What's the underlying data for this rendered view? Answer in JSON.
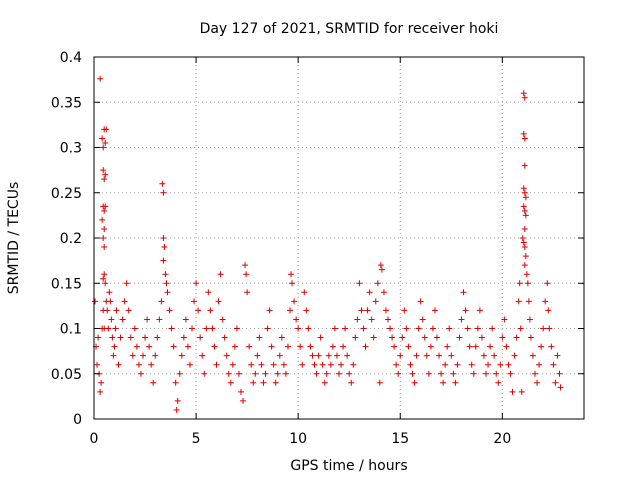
{
  "colors": {
    "series": "#e00000",
    "grid": "#a0a0a0",
    "axis": "#000000"
  },
  "chart_data": {
    "type": "scatter",
    "title": "Day 127 of 2021, SRMTID for receiver hoki",
    "xlabel": "GPS time / hours",
    "ylabel": "SRMTID / TECUs",
    "xlim": [
      0,
      24
    ],
    "ylim": [
      0,
      0.4
    ],
    "grid": true,
    "marker": "plus",
    "x_ticks": [
      0,
      5,
      10,
      15,
      20
    ],
    "x_tick_labels": [
      "0",
      "5",
      "10",
      "15",
      "20"
    ],
    "y_ticks": [
      0,
      0.05,
      0.1,
      0.15,
      0.2,
      0.25,
      0.3,
      0.35,
      0.4
    ],
    "y_tick_labels": [
      "0",
      "0.05",
      "0.1",
      "0.15",
      "0.2",
      "0.25",
      "0.3",
      "0.35",
      "0.4"
    ],
    "series": [
      {
        "name": "SRMTID",
        "points": [
          [
            0.05,
            0.13
          ],
          [
            0.1,
            0.08
          ],
          [
            0.15,
            0.06
          ],
          [
            0.2,
            0.09
          ],
          [
            0.25,
            0.05
          ],
          [
            0.3,
            0.03
          ],
          [
            0.35,
            0.04
          ],
          [
            0.4,
            0.1
          ],
          [
            0.45,
            0.12
          ],
          [
            0.5,
            0.1
          ],
          [
            0.3,
            0.376
          ],
          [
            0.4,
            0.31
          ],
          [
            0.45,
            0.3
          ],
          [
            0.5,
            0.32
          ],
          [
            0.55,
            0.305
          ],
          [
            0.6,
            0.32
          ],
          [
            0.45,
            0.275
          ],
          [
            0.5,
            0.265
          ],
          [
            0.55,
            0.27
          ],
          [
            0.45,
            0.235
          ],
          [
            0.5,
            0.23
          ],
          [
            0.55,
            0.235
          ],
          [
            0.4,
            0.22
          ],
          [
            0.5,
            0.21
          ],
          [
            0.45,
            0.2
          ],
          [
            0.5,
            0.19
          ],
          [
            0.45,
            0.155
          ],
          [
            0.5,
            0.16
          ],
          [
            0.55,
            0.15
          ],
          [
            0.6,
            0.13
          ],
          [
            0.65,
            0.12
          ],
          [
            0.7,
            0.1
          ],
          [
            0.75,
            0.14
          ],
          [
            0.8,
            0.13
          ],
          [
            0.85,
            0.11
          ],
          [
            0.9,
            0.09
          ],
          [
            0.95,
            0.07
          ],
          [
            1.0,
            0.08
          ],
          [
            1.05,
            0.1
          ],
          [
            1.1,
            0.12
          ],
          [
            1.2,
            0.06
          ],
          [
            1.3,
            0.09
          ],
          [
            1.4,
            0.11
          ],
          [
            1.5,
            0.13
          ],
          [
            1.6,
            0.15
          ],
          [
            1.7,
            0.12
          ],
          [
            1.8,
            0.09
          ],
          [
            1.9,
            0.07
          ],
          [
            2.0,
            0.1
          ],
          [
            2.1,
            0.08
          ],
          [
            2.2,
            0.06
          ],
          [
            2.3,
            0.05
          ],
          [
            2.4,
            0.07
          ],
          [
            2.5,
            0.09
          ],
          [
            2.6,
            0.11
          ],
          [
            2.7,
            0.08
          ],
          [
            2.8,
            0.06
          ],
          [
            2.9,
            0.04
          ],
          [
            3.0,
            0.07
          ],
          [
            3.1,
            0.09
          ],
          [
            3.2,
            0.11
          ],
          [
            3.3,
            0.13
          ],
          [
            3.35,
            0.26
          ],
          [
            3.4,
            0.25
          ],
          [
            3.4,
            0.2
          ],
          [
            3.45,
            0.19
          ],
          [
            3.4,
            0.175
          ],
          [
            3.5,
            0.16
          ],
          [
            3.55,
            0.15
          ],
          [
            3.6,
            0.14
          ],
          [
            3.7,
            0.12
          ],
          [
            3.8,
            0.1
          ],
          [
            3.9,
            0.08
          ],
          [
            4.0,
            0.04
          ],
          [
            4.05,
            0.01
          ],
          [
            4.1,
            0.02
          ],
          [
            4.2,
            0.05
          ],
          [
            4.3,
            0.07
          ],
          [
            4.4,
            0.09
          ],
          [
            4.5,
            0.11
          ],
          [
            4.6,
            0.08
          ],
          [
            4.7,
            0.06
          ],
          [
            4.8,
            0.1
          ],
          [
            4.9,
            0.13
          ],
          [
            5.0,
            0.15
          ],
          [
            5.1,
            0.12
          ],
          [
            5.2,
            0.09
          ],
          [
            5.3,
            0.07
          ],
          [
            5.4,
            0.05
          ],
          [
            5.5,
            0.1
          ],
          [
            5.6,
            0.14
          ],
          [
            5.7,
            0.12
          ],
          [
            5.8,
            0.1
          ],
          [
            5.9,
            0.08
          ],
          [
            6.0,
            0.06
          ],
          [
            6.1,
            0.13
          ],
          [
            6.2,
            0.16
          ],
          [
            6.3,
            0.11
          ],
          [
            6.4,
            0.09
          ],
          [
            6.5,
            0.07
          ],
          [
            6.6,
            0.05
          ],
          [
            6.7,
            0.04
          ],
          [
            6.8,
            0.06
          ],
          [
            6.9,
            0.08
          ],
          [
            7.0,
            0.1
          ],
          [
            7.1,
            0.05
          ],
          [
            7.2,
            0.03
          ],
          [
            7.3,
            0.02
          ],
          [
            7.4,
            0.17
          ],
          [
            7.45,
            0.16
          ],
          [
            7.5,
            0.14
          ],
          [
            7.6,
            0.08
          ],
          [
            7.7,
            0.06
          ],
          [
            7.8,
            0.04
          ],
          [
            7.9,
            0.05
          ],
          [
            8.0,
            0.07
          ],
          [
            8.1,
            0.09
          ],
          [
            8.2,
            0.06
          ],
          [
            8.3,
            0.04
          ],
          [
            8.4,
            0.05
          ],
          [
            8.5,
            0.1
          ],
          [
            8.6,
            0.12
          ],
          [
            8.7,
            0.08
          ],
          [
            8.8,
            0.06
          ],
          [
            8.9,
            0.04
          ],
          [
            9.0,
            0.05
          ],
          [
            9.1,
            0.07
          ],
          [
            9.2,
            0.09
          ],
          [
            9.3,
            0.06
          ],
          [
            9.4,
            0.05
          ],
          [
            9.5,
            0.08
          ],
          [
            9.6,
            0.12
          ],
          [
            9.65,
            0.16
          ],
          [
            9.7,
            0.15
          ],
          [
            9.8,
            0.13
          ],
          [
            9.9,
            0.11
          ],
          [
            10.0,
            0.1
          ],
          [
            10.1,
            0.08
          ],
          [
            10.2,
            0.06
          ],
          [
            10.3,
            0.14
          ],
          [
            10.4,
            0.12
          ],
          [
            10.5,
            0.1
          ],
          [
            10.6,
            0.08
          ],
          [
            10.7,
            0.07
          ],
          [
            10.8,
            0.06
          ],
          [
            10.9,
            0.05
          ],
          [
            11.0,
            0.07
          ],
          [
            11.1,
            0.09
          ],
          [
            11.2,
            0.06
          ],
          [
            11.3,
            0.04
          ],
          [
            11.4,
            0.05
          ],
          [
            11.5,
            0.07
          ],
          [
            11.6,
            0.06
          ],
          [
            11.7,
            0.08
          ],
          [
            11.8,
            0.1
          ],
          [
            11.9,
            0.07
          ],
          [
            12.0,
            0.05
          ],
          [
            12.1,
            0.06
          ],
          [
            12.2,
            0.08
          ],
          [
            12.3,
            0.1
          ],
          [
            12.4,
            0.07
          ],
          [
            12.5,
            0.05
          ],
          [
            12.6,
            0.04
          ],
          [
            12.7,
            0.06
          ],
          [
            12.8,
            0.09
          ],
          [
            12.9,
            0.11
          ],
          [
            13.0,
            0.15
          ],
          [
            13.1,
            0.12
          ],
          [
            13.2,
            0.1
          ],
          [
            13.3,
            0.08
          ],
          [
            13.4,
            0.12
          ],
          [
            13.5,
            0.14
          ],
          [
            13.6,
            0.11
          ],
          [
            13.7,
            0.09
          ],
          [
            13.8,
            0.13
          ],
          [
            13.9,
            0.15
          ],
          [
            14.0,
            0.04
          ],
          [
            14.05,
            0.17
          ],
          [
            14.1,
            0.165
          ],
          [
            14.2,
            0.14
          ],
          [
            14.3,
            0.12
          ],
          [
            14.4,
            0.11
          ],
          [
            14.5,
            0.1
          ],
          [
            14.6,
            0.09
          ],
          [
            14.7,
            0.08
          ],
          [
            14.8,
            0.06
          ],
          [
            14.9,
            0.05
          ],
          [
            15.0,
            0.07
          ],
          [
            15.1,
            0.09
          ],
          [
            15.2,
            0.12
          ],
          [
            15.3,
            0.1
          ],
          [
            15.4,
            0.08
          ],
          [
            15.5,
            0.06
          ],
          [
            15.6,
            0.05
          ],
          [
            15.7,
            0.04
          ],
          [
            15.8,
            0.07
          ],
          [
            15.9,
            0.1
          ],
          [
            16.0,
            0.13
          ],
          [
            16.1,
            0.11
          ],
          [
            16.2,
            0.09
          ],
          [
            16.3,
            0.07
          ],
          [
            16.4,
            0.05
          ],
          [
            16.5,
            0.08
          ],
          [
            16.6,
            0.1
          ],
          [
            16.7,
            0.12
          ],
          [
            16.8,
            0.09
          ],
          [
            16.9,
            0.07
          ],
          [
            17.0,
            0.05
          ],
          [
            17.1,
            0.04
          ],
          [
            17.2,
            0.06
          ],
          [
            17.3,
            0.08
          ],
          [
            17.4,
            0.1
          ],
          [
            17.5,
            0.07
          ],
          [
            17.6,
            0.05
          ],
          [
            17.7,
            0.04
          ],
          [
            17.8,
            0.06
          ],
          [
            17.9,
            0.09
          ],
          [
            18.0,
            0.11
          ],
          [
            18.1,
            0.14
          ],
          [
            18.2,
            0.12
          ],
          [
            18.3,
            0.1
          ],
          [
            18.4,
            0.08
          ],
          [
            18.5,
            0.06
          ],
          [
            18.6,
            0.05
          ],
          [
            18.7,
            0.08
          ],
          [
            18.8,
            0.1
          ],
          [
            18.9,
            0.12
          ],
          [
            19.0,
            0.09
          ],
          [
            19.1,
            0.07
          ],
          [
            19.2,
            0.05
          ],
          [
            19.3,
            0.06
          ],
          [
            19.4,
            0.08
          ],
          [
            19.5,
            0.1
          ],
          [
            19.6,
            0.07
          ],
          [
            19.7,
            0.05
          ],
          [
            19.8,
            0.04
          ],
          [
            19.9,
            0.06
          ],
          [
            20.0,
            0.09
          ],
          [
            20.1,
            0.11
          ],
          [
            20.2,
            0.08
          ],
          [
            20.3,
            0.06
          ],
          [
            20.4,
            0.05
          ],
          [
            20.5,
            0.03
          ],
          [
            20.6,
            0.07
          ],
          [
            20.7,
            0.09
          ],
          [
            20.8,
            0.13
          ],
          [
            20.85,
            0.15
          ],
          [
            20.9,
            0.1
          ],
          [
            20.95,
            0.03
          ],
          [
            21.0,
            0.2
          ],
          [
            21.05,
            0.36
          ],
          [
            21.1,
            0.355
          ],
          [
            21.05,
            0.315
          ],
          [
            21.1,
            0.31
          ],
          [
            21.1,
            0.28
          ],
          [
            21.05,
            0.255
          ],
          [
            21.1,
            0.25
          ],
          [
            21.15,
            0.245
          ],
          [
            21.05,
            0.235
          ],
          [
            21.1,
            0.23
          ],
          [
            21.15,
            0.225
          ],
          [
            21.1,
            0.21
          ],
          [
            21.05,
            0.195
          ],
          [
            21.1,
            0.19
          ],
          [
            21.15,
            0.18
          ],
          [
            21.1,
            0.17
          ],
          [
            21.2,
            0.16
          ],
          [
            21.25,
            0.15
          ],
          [
            21.3,
            0.13
          ],
          [
            21.35,
            0.11
          ],
          [
            21.4,
            0.09
          ],
          [
            21.5,
            0.07
          ],
          [
            21.6,
            0.05
          ],
          [
            21.7,
            0.04
          ],
          [
            21.8,
            0.06
          ],
          [
            21.9,
            0.08
          ],
          [
            22.0,
            0.1
          ],
          [
            22.1,
            0.13
          ],
          [
            22.2,
            0.15
          ],
          [
            22.25,
            0.12
          ],
          [
            22.3,
            0.1
          ],
          [
            22.4,
            0.08
          ],
          [
            22.5,
            0.06
          ],
          [
            22.6,
            0.04
          ],
          [
            22.7,
            0.07
          ],
          [
            22.8,
            0.05
          ],
          [
            22.85,
            0.035
          ]
        ]
      }
    ]
  }
}
